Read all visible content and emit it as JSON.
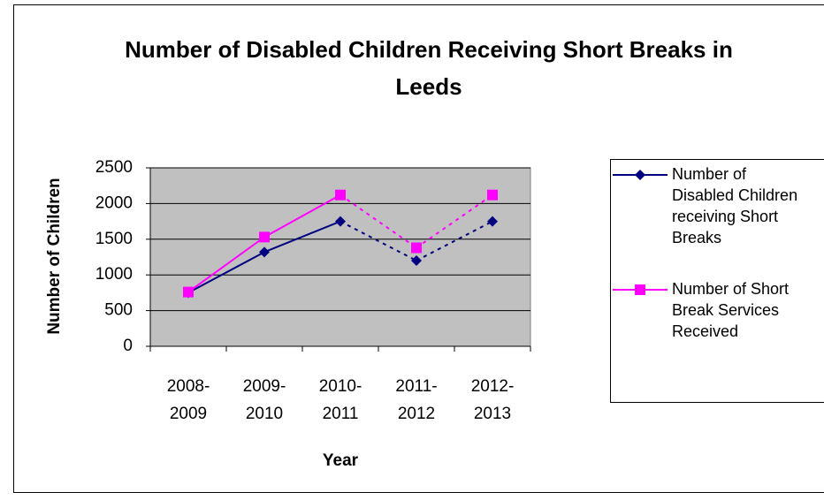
{
  "chart_data": {
    "type": "line",
    "title": "Number of Disabled Children Receiving Short Breaks in Leeds",
    "x_label": "Year",
    "y_label": "Number of Children",
    "categories": [
      "2008-2009",
      "2009-2010",
      "2010-2011",
      "2011-2012",
      "2012-2013"
    ],
    "series": [
      {
        "name": "Number of Disabled Children receiving Short Breaks",
        "color": "#000080",
        "marker": "diamond",
        "dashed_from": 2,
        "values": [
          750,
          1320,
          1750,
          1200,
          1750
        ]
      },
      {
        "name": "Number of Short Break Services Received",
        "color": "#ff00ff",
        "marker": "square",
        "dashed_from": 2,
        "values": [
          760,
          1530,
          2120,
          1380,
          2120
        ]
      }
    ],
    "ylim": [
      0,
      2500
    ],
    "yticks": [
      0,
      500,
      1000,
      1500,
      2000,
      2500
    ],
    "grid": true,
    "legend": "right"
  }
}
